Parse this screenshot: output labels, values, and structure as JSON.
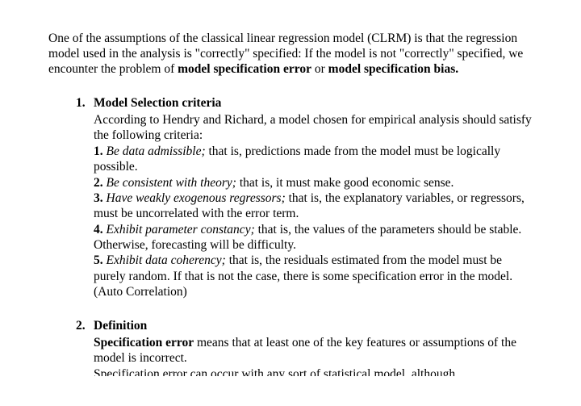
{
  "intro": {
    "part1": "One of the assumptions of the classical linear regression model (CLRM) is that the regression model used in the analysis is \"correctly\" specified: If the model is not \"correctly\" specified, we encounter the problem of ",
    "bold1": "model specification error",
    "part2": " or ",
    "bold2": "model specification bias."
  },
  "sec1": {
    "num": "1.",
    "title": "Model Selection criteria",
    "lead": "According to Hendry and Richard, a model chosen for empirical analysis should satisfy the following criteria:",
    "c1": {
      "n": "1.",
      "term": "Be data admissible;",
      "rest": " that is, predictions made from the model must be logically possible."
    },
    "c2": {
      "n": "2.",
      "term": "Be consistent with theory;",
      "rest": " that is, it must make good economic sense."
    },
    "c3": {
      "n": "3.",
      "term": "Have weakly exogenous regressors;",
      "rest": " that is, the explanatory variables, or regressors, must be uncorrelated with the error term."
    },
    "c4": {
      "n": "4.",
      "term": "Exhibit parameter constancy;",
      "rest": " that is, the values of the parameters should be stable. Otherwise, forecasting will be difficulty."
    },
    "c5": {
      "n": "5.",
      "term": "Exhibit data coherency;",
      "rest": " that is, the residuals estimated from the model must be purely random.  If that is not the case, there is some specification error in the model. (Auto Correlation)"
    }
  },
  "sec2": {
    "num": "2.",
    "title": "Definition",
    "p1_bold": "Specification error",
    "p1_rest": " means that at least one of the key features or assumptions of the model is incorrect.",
    "p2": "Specification error can occur with any sort of statistical model, although"
  }
}
